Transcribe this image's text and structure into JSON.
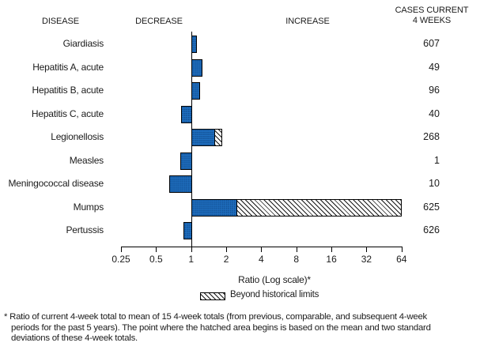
{
  "header": {
    "disease": "DISEASE",
    "decrease": "DECREASE",
    "increase": "INCREASE",
    "cases_line1": "CASES CURRENT",
    "cases_line2": "4 WEEKS"
  },
  "chart_data": {
    "type": "bar",
    "orientation": "horizontal",
    "scale": "log2",
    "title": "",
    "xlabel": "Ratio (Log scale)*",
    "axis": {
      "ticks": [
        "0.25",
        "0.5",
        "1",
        "2",
        "4",
        "8",
        "16",
        "32",
        "64"
      ],
      "tick_values": [
        0.25,
        0.5,
        1,
        2,
        4,
        8,
        16,
        32,
        64
      ],
      "range": [
        0.25,
        64
      ],
      "baseline": 1
    },
    "rows": [
      {
        "disease": "Giardiasis",
        "ratio": 1.12,
        "cases": "607"
      },
      {
        "disease": "Hepatitis A, acute",
        "ratio": 1.25,
        "cases": "49"
      },
      {
        "disease": "Hepatitis B, acute",
        "ratio": 1.19,
        "cases": "96"
      },
      {
        "disease": "Hepatitis C, acute",
        "ratio": 0.82,
        "cases": "40"
      },
      {
        "disease": "Legionellosis",
        "ratio": 1.85,
        "hatch_from": 1.6,
        "cases": "268"
      },
      {
        "disease": "Measles",
        "ratio": 0.81,
        "cases": "1"
      },
      {
        "disease": "Meningococcal disease",
        "ratio": 0.65,
        "cases": "10"
      },
      {
        "disease": "Mumps",
        "ratio": 64,
        "hatch_from": 2.5,
        "cases": "625"
      },
      {
        "disease": "Pertussis",
        "ratio": 0.86,
        "cases": "626"
      }
    ],
    "legend": {
      "hatch_label": "Beyond historical limits"
    },
    "colors": {
      "bar_fill": "#1f70c1",
      "bar_dot": "#08346e",
      "line": "#000000",
      "hatch": "#1a1a1a"
    }
  },
  "footnote": {
    "lines": [
      "* Ratio of current 4-week total to mean of 15 4-week totals (from previous, comparable, and subsequent 4-week",
      "periods for the past 5 years). The point where the hatched area begins is based on the mean and two standard",
      "deviations of these 4-week totals."
    ]
  }
}
